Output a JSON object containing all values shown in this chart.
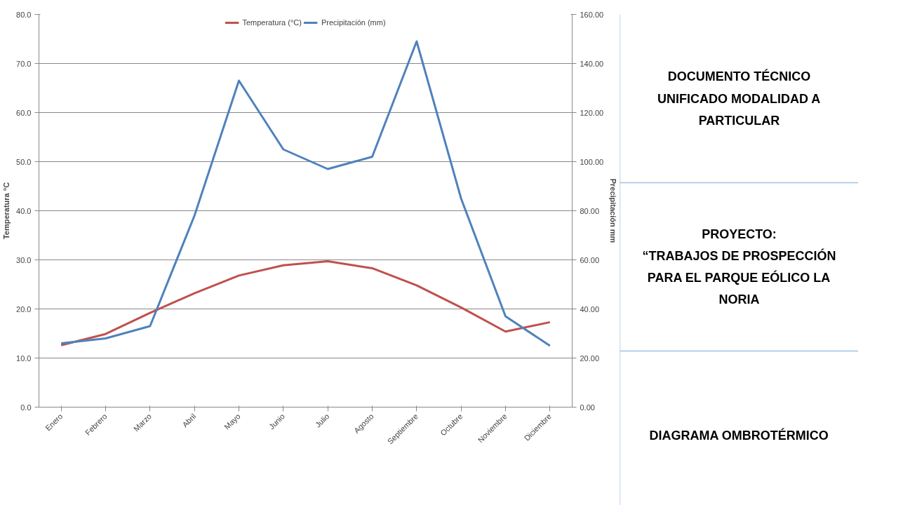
{
  "chart_data": [
    {
      "type": "line",
      "categories": [
        "Enero",
        "Febrero",
        "Marzo",
        "Abril",
        "Mayo",
        "Junio",
        "Julio",
        "Agosto",
        "Septiembre",
        "Octubre",
        "Noviembre",
        "Diciembre"
      ],
      "series": [
        {
          "name": "Temperatura (°C)",
          "color": "#c0504d",
          "values": [
            12.6,
            14.9,
            19.2,
            23.2,
            26.8,
            28.9,
            29.7,
            28.3,
            24.8,
            20.3,
            15.4,
            17.3
          ]
        },
        {
          "name": "Precipitación (mm)",
          "color": "#4f81bd",
          "axis": "y2",
          "values": [
            26,
            28,
            33,
            78,
            133,
            105,
            97,
            102,
            149,
            85,
            37,
            25
          ]
        }
      ],
      "ylabel": "Temperatura °C",
      "y2label": "Precipitación mm",
      "ylim": [
        0,
        80
      ],
      "yticks": [
        {
          "value": 0,
          "label": "0.0"
        },
        {
          "value": 10,
          "label": "10.0"
        },
        {
          "value": 20,
          "label": "20.0"
        },
        {
          "value": 30,
          "label": "30.0"
        },
        {
          "value": 40,
          "label": "40.0"
        },
        {
          "value": 50,
          "label": "50.0"
        },
        {
          "value": 60,
          "label": "60.0"
        },
        {
          "value": 70,
          "label": "70.0"
        },
        {
          "value": 80,
          "label": "80.0"
        }
      ],
      "y2lim": [
        0,
        160
      ],
      "y2ticks": [
        {
          "value": 0,
          "label": "0.00"
        },
        {
          "value": 20,
          "label": "20.00"
        },
        {
          "value": 40,
          "label": "40.00"
        },
        {
          "value": 60,
          "label": "60.00"
        },
        {
          "value": 80,
          "label": "80.00"
        },
        {
          "value": 100,
          "label": "100.00"
        },
        {
          "value": 120,
          "label": "120.00"
        },
        {
          "value": 140,
          "label": "140.00"
        },
        {
          "value": 160,
          "label": "160.00"
        }
      ],
      "grid": "y",
      "legend": "top",
      "line_style": "solid",
      "marker": "none"
    },
    {
      "type": "other",
      "annotations": [
        "DOCUMENTO TÉCNICO UNIFICADO MODALIDAD A PARTICULAR",
        "PROYECTO:\n“TRABAJOS DE PROSPECCIÓN PARA EL PARQUE EÓLICO LA NORIA",
        "DIAGRAMA OMBROTÉRMICO"
      ]
    }
  ]
}
